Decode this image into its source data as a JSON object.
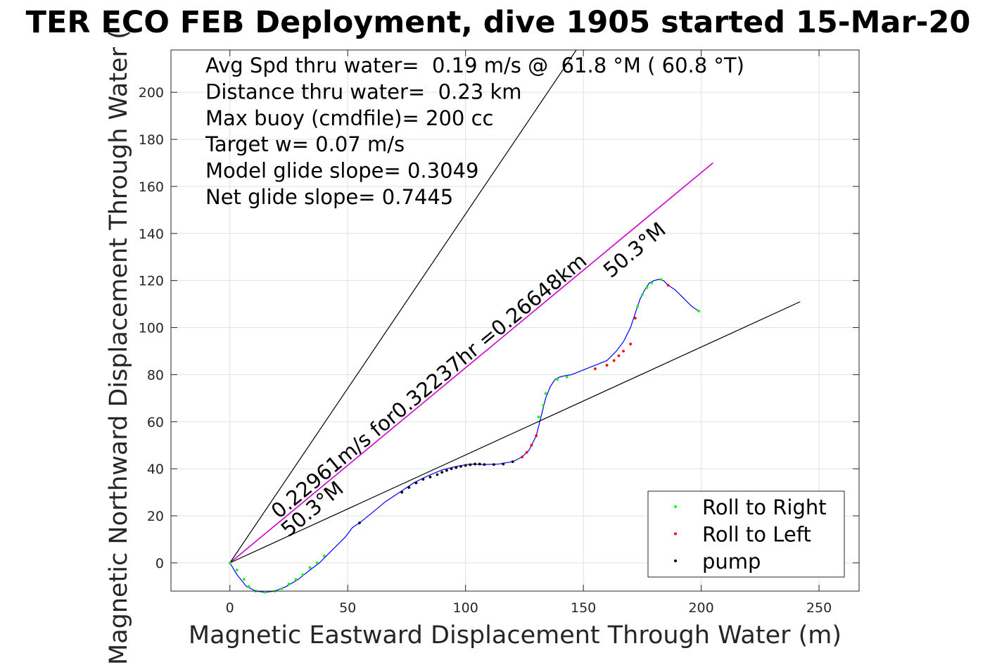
{
  "chart_data": {
    "type": "line",
    "title": "TER ECO FEB Deployment, dive 1905 started 15-Mar-20",
    "xlabel": "Magnetic Eastward Displacement Through Water (m)",
    "ylabel": "Magnetic Northward Displacement Through Water (",
    "xlim": [
      -25,
      267
    ],
    "ylim": [
      -12,
      218
    ],
    "xticks": [
      0,
      50,
      100,
      150,
      200,
      250
    ],
    "yticks": [
      0,
      20,
      40,
      60,
      80,
      100,
      120,
      140,
      160,
      180,
      200
    ],
    "grid": true,
    "legend_position": "bottom-right",
    "colors": {
      "track": "#0000ff",
      "roll_right": "#00ff00",
      "roll_left": "#ff0000",
      "pump": "#000000",
      "heading_line": "#cc00cc",
      "envelope": "#000000"
    },
    "annotations": {
      "info_lines": [
        "Avg Spd thru water=  0.19 m/s @  61.8 °M ( 60.8 °T)",
        "Distance thru water=  0.23 km",
        "Max buoy (cmdfile)= 200 cc",
        "Target w= 0.07 m/s",
        "Model glide slope= 0.3049",
        "Net glide slope= 0.7445"
      ],
      "heading_label_upper": "0.22961m/s for0.32237hr =0.26648km",
      "heading_label_lower": "50.3°M",
      "heading_label_tip": "50.3°M"
    },
    "reference_lines": [
      {
        "name": "heading",
        "x": [
          0,
          205
        ],
        "y": [
          0,
          170
        ]
      },
      {
        "name": "upper-envelope",
        "x": [
          0,
          147
        ],
        "y": [
          0,
          218
        ]
      },
      {
        "name": "lower-envelope",
        "x": [
          0,
          242
        ],
        "y": [
          0,
          111
        ]
      }
    ],
    "track": {
      "x": [
        0,
        3,
        7,
        11,
        15,
        19,
        24,
        29,
        34,
        38,
        41,
        45,
        49,
        52,
        55,
        60,
        66,
        72,
        78,
        84,
        90,
        96,
        102,
        108,
        114,
        120,
        124,
        127,
        130,
        132,
        134,
        136,
        138,
        140,
        142,
        145,
        150,
        155,
        160,
        164,
        167,
        170,
        172,
        174,
        176,
        178,
        180,
        182,
        184,
        186,
        189,
        192,
        196,
        199
      ],
      "y": [
        0,
        -5,
        -10,
        -12,
        -12.5,
        -12,
        -10,
        -7,
        -3,
        0,
        3,
        7,
        11,
        15,
        17,
        21,
        26,
        30,
        34,
        37,
        39.5,
        41,
        42,
        41.8,
        42,
        43,
        45,
        48,
        54,
        62,
        70,
        75,
        78,
        79,
        79.5,
        80,
        82,
        84,
        86,
        90,
        94,
        100,
        106,
        112,
        116,
        119,
        120,
        120.5,
        120,
        118,
        116,
        113,
        109,
        107
      ]
    },
    "series": [
      {
        "name": "Roll to Right",
        "x": [
          0,
          3,
          6,
          8,
          11,
          15,
          19,
          22,
          25,
          28,
          31,
          34,
          37,
          40,
          131,
          133,
          134,
          139,
          143,
          172,
          173,
          175,
          177,
          179,
          183,
          199
        ],
        "y": [
          0,
          -3,
          -7,
          -10,
          -12,
          -12.5,
          -12,
          -11,
          -9,
          -7,
          -5,
          -2,
          0,
          3,
          62,
          67,
          72,
          78,
          79,
          104,
          109,
          114,
          117,
          119,
          120.5,
          107
        ]
      },
      {
        "name": "Roll to Left",
        "x": [
          124,
          126,
          128,
          130,
          155,
          160,
          163,
          165,
          167,
          170,
          172,
          186
        ],
        "y": [
          45,
          47,
          50,
          54,
          82.5,
          84,
          86,
          88,
          90,
          93,
          104,
          118
        ]
      },
      {
        "name": "pump",
        "x": [
          55,
          73,
          76,
          79,
          82,
          85,
          88,
          90,
          92,
          94,
          96,
          98,
          100,
          102,
          104,
          106,
          108,
          112,
          116,
          120
        ],
        "y": [
          17,
          30,
          32,
          34,
          35.5,
          36.5,
          37.5,
          38.5,
          39.3,
          40,
          40.5,
          41,
          41.4,
          41.7,
          42,
          42,
          41.8,
          41.8,
          42,
          43
        ]
      }
    ]
  }
}
